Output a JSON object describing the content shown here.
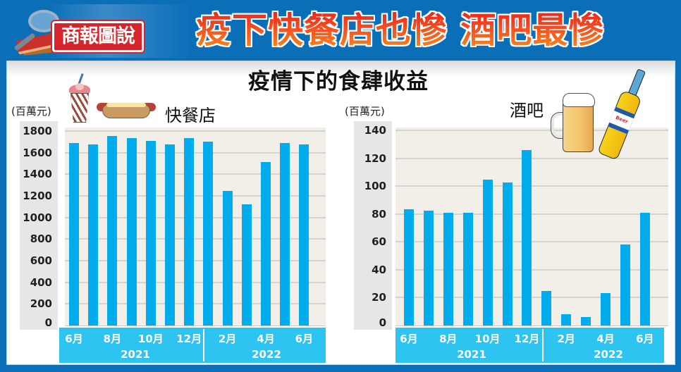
{
  "header": {
    "logo_text": "商報圖說",
    "headline": "疫下快餐店也慘 酒吧最慘"
  },
  "main_title": "疫情下的食肆收益",
  "left_chart": {
    "title": "快餐店",
    "unit": "(百萬元)",
    "illustrations": [
      "milkshake-icon",
      "hotdog-icon"
    ],
    "y_ticks": [
      "1800",
      "1600",
      "1400",
      "1200",
      "1000",
      "800",
      "600",
      "400",
      "200",
      "0"
    ],
    "x_labels": [
      "6月",
      "8月",
      "10月",
      "12月",
      "2月",
      "4月",
      "6月"
    ],
    "year_labels": [
      "2021",
      "2022"
    ]
  },
  "right_chart": {
    "title": "酒吧",
    "unit": "(百萬元)",
    "illustrations": [
      "beer-mug-icon",
      "beer-bottle-icon"
    ],
    "bottle_label": "Beer",
    "y_ticks": [
      "140",
      "120",
      "100",
      "80",
      "60",
      "40",
      "20",
      "0"
    ],
    "x_labels": [
      "6月",
      "8月",
      "10月",
      "12月",
      "2月",
      "4月",
      "6月"
    ],
    "year_labels": [
      "2021",
      "2022"
    ]
  },
  "colors": {
    "frame": "#0b6fb8",
    "bar": "#00acec",
    "axis_band": "#2ec4f2",
    "plot_bg": "#f2eee8",
    "headline_top": "#e8201f",
    "headline_bottom": "#f7941d"
  },
  "chart_data": [
    {
      "type": "bar",
      "title": "快餐店",
      "ylabel": "(百萬元)",
      "xlabel": "",
      "categories": [
        "2021-06",
        "2021-07",
        "2021-08",
        "2021-09",
        "2021-10",
        "2021-11",
        "2021-12",
        "2022-01",
        "2022-02",
        "2022-03",
        "2022-04",
        "2022-05",
        "2022-06"
      ],
      "values": [
        1690,
        1675,
        1755,
        1735,
        1710,
        1675,
        1735,
        1700,
        1245,
        1125,
        1510,
        1690,
        1675
      ],
      "ylim": [
        0,
        1800
      ],
      "y_ticks": [
        0,
        200,
        400,
        600,
        800,
        1000,
        1200,
        1400,
        1600,
        1800
      ],
      "grid": true,
      "legend": "none"
    },
    {
      "type": "bar",
      "title": "酒吧",
      "ylabel": "(百萬元)",
      "xlabel": "",
      "categories": [
        "2021-06",
        "2021-07",
        "2021-08",
        "2021-09",
        "2021-10",
        "2021-11",
        "2021-12",
        "2022-01",
        "2022-02",
        "2022-03",
        "2022-04",
        "2022-05",
        "2022-06"
      ],
      "values": [
        83.5,
        82.5,
        81,
        81,
        104.5,
        102.5,
        126,
        25,
        8,
        6,
        23.5,
        58,
        81
      ],
      "ylim": [
        0,
        140
      ],
      "y_ticks": [
        0,
        20,
        40,
        60,
        80,
        100,
        120,
        140
      ],
      "grid": true,
      "legend": "none"
    }
  ]
}
